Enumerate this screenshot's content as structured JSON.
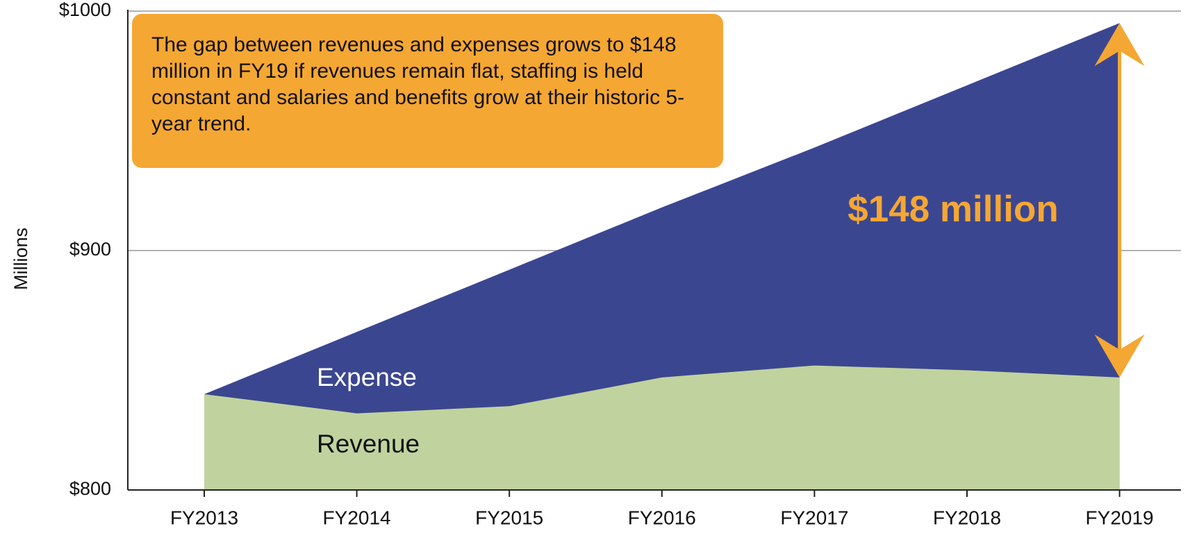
{
  "chart_data": {
    "type": "area",
    "annotation": "The gap between revenues and expenses grows to $148 million in FY19 if revenues remain flat, staffing is held constant and salaries and benefits grow at their historic 5-year trend.",
    "gap_label": "$148 million",
    "ylabel": "Millions",
    "categories": [
      "FY2013",
      "FY2014",
      "FY2015",
      "FY2016",
      "FY2017",
      "FY2018",
      "FY2019"
    ],
    "series": [
      {
        "name": "Expense",
        "color": "#3b4690",
        "values": [
          840,
          866,
          892,
          918,
          943,
          969,
          995
        ]
      },
      {
        "name": "Revenue",
        "color": "#c0d39e",
        "values": [
          840,
          832,
          835,
          847,
          852,
          850,
          847
        ]
      }
    ],
    "ylim": [
      800,
      1000
    ],
    "yticks": [
      {
        "value": 800,
        "label": "$800"
      },
      {
        "value": 900,
        "label": "$900"
      },
      {
        "value": 1000,
        "label": "$1000"
      }
    ],
    "grid": true
  }
}
